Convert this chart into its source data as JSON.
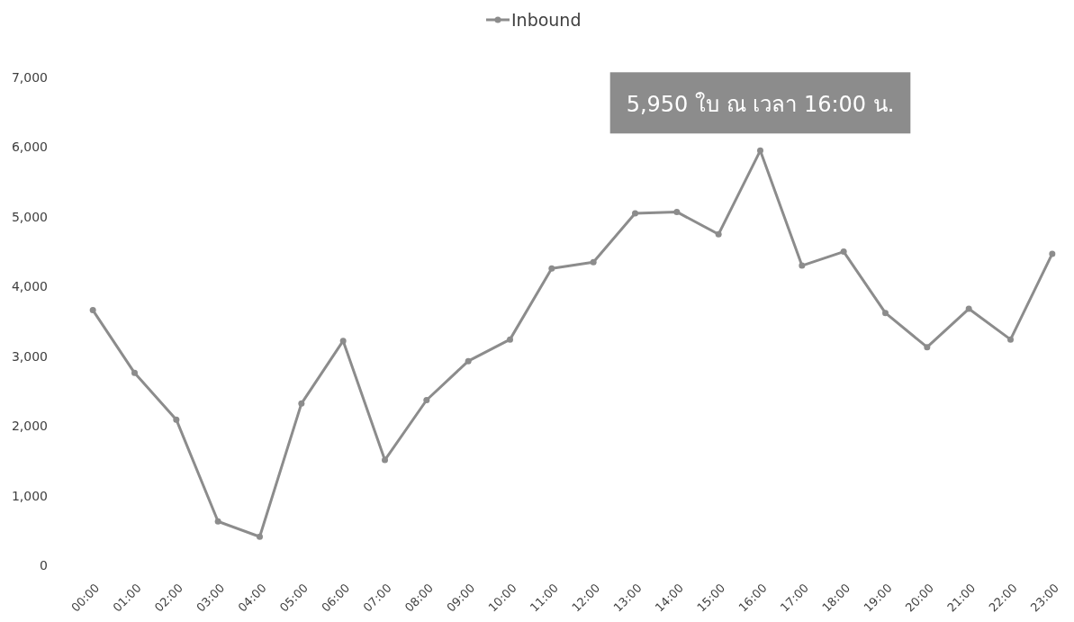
{
  "chart_data": {
    "type": "line",
    "categories": [
      "00:00",
      "01:00",
      "02:00",
      "03:00",
      "04:00",
      "05:00",
      "06:00",
      "07:00",
      "08:00",
      "09:00",
      "10:00",
      "11:00",
      "12:00",
      "13:00",
      "14:00",
      "15:00",
      "16:00",
      "17:00",
      "18:00",
      "19:00",
      "20:00",
      "21:00",
      "22:00",
      "23:00"
    ],
    "series": [
      {
        "name": "Inbound",
        "color": "#8c8c8c",
        "values": [
          3660,
          2760,
          2090,
          630,
          410,
          2320,
          3220,
          1510,
          2370,
          2930,
          3240,
          4260,
          4350,
          5050,
          5070,
          4750,
          5950,
          4300,
          4500,
          3620,
          3130,
          3680,
          3240,
          4470
        ]
      }
    ],
    "ylim": [
      0,
      7000
    ],
    "yticks": [
      0,
      {
        "value": 1000,
        "label": "1,000"
      },
      {
        "value": 2000,
        "label": "2,000"
      },
      {
        "value": 3000,
        "label": "3,000"
      },
      {
        "value": 4000,
        "label": "4,000"
      },
      {
        "value": 5000,
        "label": "5,000"
      },
      {
        "value": 6000,
        "label": "6,000"
      },
      {
        "value": 7000,
        "label": "7,000"
      }
    ],
    "annotations": [
      {
        "text": "5,950 ใบ ณ เวลา 16:00 น.",
        "x": "16:00",
        "y": 5950
      }
    ],
    "legend": "top",
    "marker": "circle",
    "grid": false
  }
}
